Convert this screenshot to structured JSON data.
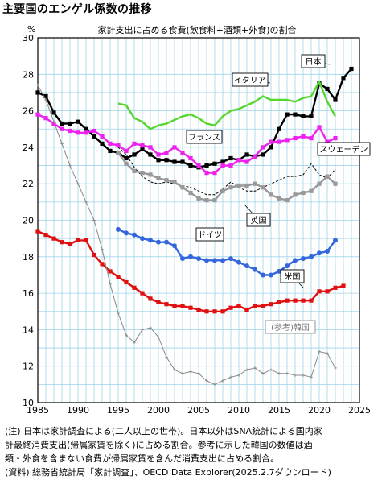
{
  "page_title": "主要国のエンゲル係数の推移",
  "notes": [
    "(注) 日本は家計調査による(二人以上の世帯)。日本以外はSNA統計による国内家",
    "計最終消費支出(帰属家賃を除く)に占める割合。参考に示した韓国の数値は酒",
    "類・外食を含まない食費が帰属家賃を含んだ消費支出に占める割合。",
    "(資料) 総務省統計局「家計調査」、OECD Data Explorer(2025.2.7ダウンロード)"
  ],
  "chart_data": {
    "type": "line",
    "title": "家計支出に占める食費(飲食料+酒類+外食)の割合",
    "ylabel": "%",
    "xlabel": "",
    "xlim": [
      1985,
      2025
    ],
    "ylim": [
      10,
      30
    ],
    "x_ticks": [
      1985,
      1990,
      1995,
      2000,
      2005,
      2010,
      2015,
      2020,
      2025
    ],
    "y_ticks": [
      10,
      12,
      14,
      16,
      18,
      20,
      22,
      24,
      26,
      28,
      30
    ],
    "grid": true,
    "series": [
      {
        "name": "日本",
        "color": "#000000",
        "marker": "square",
        "dash": "",
        "x": [
          1985,
          1986,
          1987,
          1988,
          1989,
          1990,
          1991,
          1992,
          1993,
          1994,
          1995,
          1996,
          1997,
          1998,
          1999,
          2000,
          2001,
          2002,
          2003,
          2004,
          2005,
          2006,
          2007,
          2008,
          2009,
          2010,
          2011,
          2012,
          2013,
          2014,
          2015,
          2016,
          2017,
          2018,
          2019,
          2020,
          2021,
          2022,
          2023,
          2024
        ],
        "y": [
          27.0,
          26.8,
          25.9,
          25.3,
          25.3,
          25.4,
          25.0,
          24.6,
          24.2,
          23.8,
          23.7,
          23.4,
          23.6,
          23.9,
          23.6,
          23.3,
          23.3,
          23.2,
          23.2,
          23.0,
          22.9,
          23.0,
          23.1,
          23.2,
          23.4,
          23.3,
          23.6,
          23.5,
          23.6,
          24.0,
          25.0,
          25.8,
          25.8,
          25.7,
          25.7,
          27.5,
          27.2,
          26.6,
          27.8,
          28.3
        ]
      },
      {
        "name": "イタリア",
        "color": "#55d62e",
        "marker": "none",
        "dash": "",
        "x": [
          1995,
          1996,
          1997,
          1998,
          1999,
          2000,
          2001,
          2002,
          2003,
          2004,
          2005,
          2006,
          2007,
          2008,
          2009,
          2010,
          2011,
          2012,
          2013,
          2014,
          2015,
          2016,
          2017,
          2018,
          2019,
          2020,
          2021,
          2022
        ],
        "y": [
          26.4,
          26.3,
          25.6,
          25.4,
          25.0,
          25.2,
          25.3,
          25.5,
          25.7,
          25.8,
          25.6,
          25.3,
          25.2,
          25.7,
          26.0,
          26.1,
          26.3,
          26.5,
          26.8,
          26.6,
          26.6,
          26.6,
          26.5,
          26.7,
          26.8,
          27.6,
          26.5,
          25.7
        ]
      },
      {
        "name": "フランス",
        "color": "#ee22ee",
        "marker": "square",
        "dash": "",
        "x": [
          1985,
          1986,
          1987,
          1988,
          1989,
          1990,
          1991,
          1992,
          1993,
          1994,
          1995,
          1996,
          1997,
          1998,
          1999,
          2000,
          2001,
          2002,
          2003,
          2004,
          2005,
          2006,
          2007,
          2008,
          2009,
          2010,
          2011,
          2012,
          2013,
          2014,
          2015,
          2016,
          2017,
          2018,
          2019,
          2020,
          2021,
          2022
        ],
        "y": [
          25.8,
          25.6,
          25.3,
          25.0,
          24.9,
          24.8,
          24.8,
          24.9,
          24.6,
          24.2,
          24.1,
          23.8,
          24.2,
          24.1,
          24.0,
          23.6,
          23.7,
          24.0,
          23.7,
          23.4,
          23.0,
          22.6,
          22.6,
          23.0,
          23.0,
          23.3,
          23.2,
          23.5,
          24.0,
          24.3,
          24.3,
          24.4,
          24.5,
          24.6,
          24.5,
          25.1,
          24.3,
          24.5
        ]
      },
      {
        "name": "スウェーデン",
        "color": "#000000",
        "marker": "none",
        "dash": "3,2",
        "x": [
          1995,
          1996,
          1997,
          1998,
          1999,
          2000,
          2001,
          2002,
          2003,
          2004,
          2005,
          2006,
          2007,
          2008,
          2009,
          2010,
          2011,
          2012,
          2013,
          2014,
          2015,
          2016,
          2017,
          2018,
          2019,
          2020,
          2021,
          2022
        ],
        "y": [
          24.0,
          23.6,
          22.9,
          22.4,
          22.1,
          22.0,
          22.1,
          22.0,
          21.9,
          21.8,
          21.6,
          21.4,
          21.4,
          21.7,
          22.1,
          21.8,
          21.6,
          21.6,
          21.8,
          22.0,
          22.2,
          22.4,
          22.4,
          22.5,
          23.1,
          22.5,
          22.3,
          22.8
        ]
      },
      {
        "name": "英国",
        "color": "#999999",
        "marker": "square",
        "dash": "",
        "x": [
          1995,
          1996,
          1997,
          1998,
          1999,
          2000,
          2001,
          2002,
          2003,
          2004,
          2005,
          2006,
          2007,
          2008,
          2009,
          2010,
          2011,
          2012,
          2013,
          2014,
          2015,
          2016,
          2017,
          2018,
          2019,
          2020,
          2021,
          2022
        ],
        "y": [
          23.7,
          23.1,
          22.7,
          22.6,
          22.5,
          22.3,
          22.2,
          22.1,
          21.8,
          21.5,
          21.2,
          21.1,
          21.1,
          21.6,
          21.8,
          21.9,
          21.9,
          22.0,
          21.8,
          21.4,
          21.2,
          21.1,
          21.4,
          21.5,
          21.6,
          22.0,
          22.4,
          22.0
        ]
      },
      {
        "name": "ドイツ",
        "color": "#3366dd",
        "marker": "circle",
        "dash": "",
        "x": [
          1995,
          1996,
          1997,
          1998,
          1999,
          2000,
          2001,
          2002,
          2003,
          2004,
          2005,
          2006,
          2007,
          2008,
          2009,
          2010,
          2011,
          2012,
          2013,
          2014,
          2015,
          2016,
          2017,
          2018,
          2019,
          2020,
          2021,
          2022
        ],
        "y": [
          19.5,
          19.3,
          19.2,
          19.0,
          18.9,
          18.8,
          18.8,
          18.6,
          17.9,
          18.0,
          17.9,
          17.8,
          17.8,
          17.8,
          17.9,
          17.7,
          17.5,
          17.3,
          17.0,
          17.0,
          17.2,
          17.5,
          17.8,
          17.9,
          18.0,
          18.2,
          18.3,
          18.9
        ]
      },
      {
        "name": "米国",
        "color": "#e01010",
        "marker": "square",
        "dash": "",
        "x": [
          1985,
          1986,
          1987,
          1988,
          1989,
          1990,
          1991,
          1992,
          1993,
          1994,
          1995,
          1996,
          1997,
          1998,
          1999,
          2000,
          2001,
          2002,
          2003,
          2004,
          2005,
          2006,
          2007,
          2008,
          2009,
          2010,
          2011,
          2012,
          2013,
          2014,
          2015,
          2016,
          2017,
          2018,
          2019,
          2020,
          2021,
          2022,
          2023
        ],
        "y": [
          19.4,
          19.2,
          19.0,
          18.8,
          18.7,
          18.9,
          18.9,
          18.1,
          17.6,
          17.2,
          16.9,
          16.6,
          16.3,
          16.0,
          15.7,
          15.5,
          15.4,
          15.3,
          15.3,
          15.2,
          15.1,
          15.0,
          15.0,
          15.0,
          15.2,
          15.3,
          15.1,
          15.3,
          15.3,
          15.4,
          15.5,
          15.6,
          15.6,
          15.6,
          15.6,
          16.1,
          16.1,
          16.3,
          16.4
        ]
      },
      {
        "name": "(参考)韓国",
        "color": "#888888",
        "marker": "plus",
        "dash": "",
        "x": [
          1985,
          1986,
          1987,
          1988,
          1989,
          1990,
          1991,
          1992,
          1993,
          1994,
          1995,
          1996,
          1997,
          1998,
          1999,
          2000,
          2001,
          2002,
          2003,
          2004,
          2005,
          2006,
          2007,
          2008,
          2009,
          2010,
          2011,
          2012,
          2013,
          2014,
          2015,
          2016,
          2017,
          2018,
          2019,
          2020,
          2021,
          2022
        ],
        "y": [
          27.4,
          26.6,
          25.4,
          24.2,
          23.0,
          22.0,
          21.0,
          20.0,
          18.4,
          16.5,
          14.9,
          13.7,
          13.3,
          14.0,
          14.1,
          13.6,
          12.5,
          11.8,
          11.6,
          11.7,
          11.6,
          11.2,
          11.0,
          11.2,
          11.4,
          11.5,
          11.8,
          11.9,
          11.6,
          11.8,
          11.6,
          11.6,
          11.5,
          11.5,
          11.4,
          12.8,
          12.7,
          11.9
        ]
      }
    ]
  }
}
